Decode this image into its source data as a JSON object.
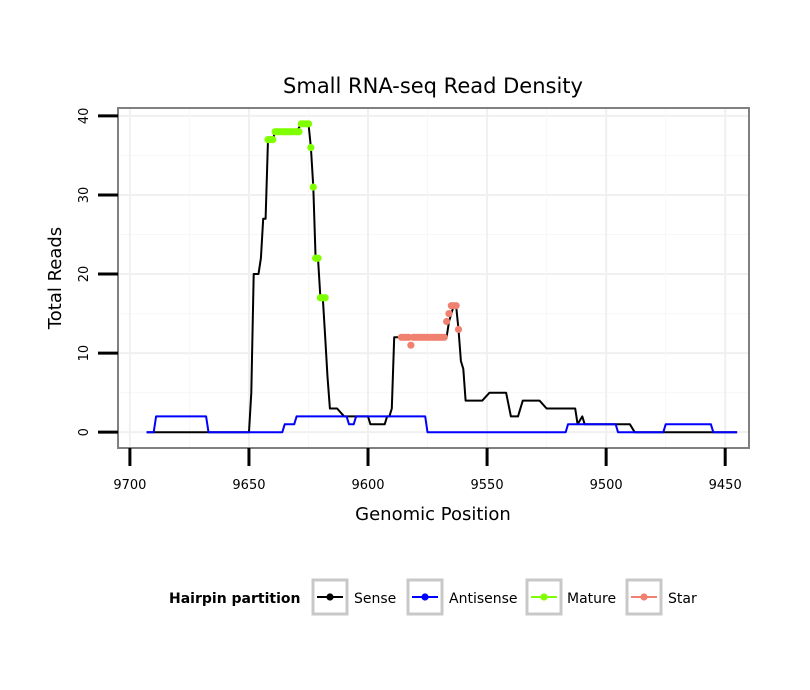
{
  "chart_data": {
    "type": "line",
    "title": "Small RNA-seq Read Density",
    "xlabel": "Genomic Position",
    "ylabel": "Total Reads",
    "x_reversed": true,
    "xlim": [
      9705,
      9440
    ],
    "ylim": [
      -2,
      41
    ],
    "x_ticks": [
      9700,
      9650,
      9600,
      9550,
      9500,
      9450
    ],
    "y_ticks": [
      0,
      10,
      20,
      30,
      40
    ],
    "grid": true,
    "legend": {
      "title": "Hairpin partition",
      "position": "bottom",
      "entries": [
        {
          "label": "Sense",
          "color": "#000000"
        },
        {
          "label": "Antisense",
          "color": "#0000ff"
        },
        {
          "label": "Mature",
          "color": "#7fff00"
        },
        {
          "label": "Star",
          "color": "#f08070"
        }
      ]
    },
    "series": [
      {
        "name": "Sense",
        "color": "#000000",
        "style": "line",
        "x": [
          9693,
          9650,
          9649,
          9648,
          9646,
          9645,
          9644,
          9643,
          9642,
          9641,
          9640,
          9639,
          9637,
          9636,
          9634,
          9630,
          9628,
          9626,
          9625,
          9624,
          9623,
          9622,
          9621,
          9620,
          9619,
          9618,
          9617,
          9616,
          9614,
          9613,
          9610,
          9600,
          9599,
          9593,
          9592,
          9591,
          9590,
          9589,
          9588,
          9586,
          9584,
          9578,
          9572,
          9568,
          9567,
          9566,
          9565,
          9564,
          9563,
          9562,
          9561,
          9560,
          9559,
          9557,
          9554,
          9552,
          9549,
          9546,
          9545,
          9542,
          9540,
          9537,
          9535,
          9530,
          9528,
          9525,
          9516,
          9513,
          9512,
          9510,
          9509,
          9505,
          9495,
          9490,
          9488,
          9470,
          9445
        ],
        "y": [
          0,
          0,
          5,
          20,
          20,
          22,
          27,
          27,
          37,
          37,
          37,
          38,
          38,
          38,
          38,
          38,
          39,
          39,
          39,
          36,
          31,
          22,
          22,
          17,
          17,
          12,
          7,
          3,
          3,
          3,
          2,
          2,
          1,
          1,
          2,
          2,
          3,
          12,
          12,
          12,
          12,
          12,
          12,
          12,
          12,
          14,
          15,
          16,
          16,
          13,
          9,
          8,
          4,
          4,
          4,
          4,
          5,
          5,
          5,
          5,
          2,
          2,
          4,
          4,
          4,
          3,
          3,
          3,
          1,
          2,
          1,
          1,
          1,
          1,
          0,
          0,
          0
        ]
      },
      {
        "name": "Antisense",
        "color": "#0000ff",
        "style": "line",
        "x": [
          9693,
          9690,
          9689,
          9668,
          9667,
          9636,
          9635,
          9631,
          9630,
          9620,
          9609,
          9608,
          9606,
          9605,
          9601,
          9595,
          9587,
          9586,
          9578,
          9576,
          9575,
          9541,
          9517,
          9516,
          9501,
          9500,
          9496,
          9495,
          9476,
          9475,
          9456,
          9455,
          9445
        ],
        "y": [
          0,
          0,
          2,
          2,
          0,
          0,
          1,
          1,
          2,
          2,
          2,
          1,
          1,
          2,
          2,
          2,
          2,
          2,
          2,
          2,
          0,
          0,
          0,
          1,
          1,
          1,
          1,
          0,
          0,
          1,
          1,
          0,
          0
        ]
      },
      {
        "name": "Mature",
        "color": "#7fff00",
        "style": "points",
        "x": [
          9642,
          9641,
          9640,
          9639,
          9638,
          9637,
          9636,
          9635,
          9634,
          9633,
          9632,
          9631,
          9630,
          9629,
          9628,
          9627,
          9626,
          9625,
          9624,
          9623,
          9622,
          9621,
          9620,
          9619,
          9618
        ],
        "y": [
          37,
          37,
          37,
          38,
          38,
          38,
          38,
          38,
          38,
          38,
          38,
          38,
          38,
          38,
          39,
          39,
          39,
          39,
          36,
          31,
          22,
          22,
          17,
          17,
          17
        ]
      },
      {
        "name": "Star",
        "color": "#f08070",
        "style": "points",
        "x": [
          9586,
          9585,
          9584,
          9583,
          9582,
          9581,
          9580,
          9579,
          9578,
          9577,
          9576,
          9575,
          9574,
          9573,
          9572,
          9571,
          9570,
          9569,
          9568,
          9567,
          9566,
          9565,
          9564,
          9563,
          9562
        ],
        "y": [
          12,
          12,
          12,
          12,
          11,
          12,
          12,
          12,
          12,
          12,
          12,
          12,
          12,
          12,
          12,
          12,
          12,
          12,
          12,
          14,
          15,
          16,
          16,
          16,
          13
        ]
      }
    ]
  }
}
